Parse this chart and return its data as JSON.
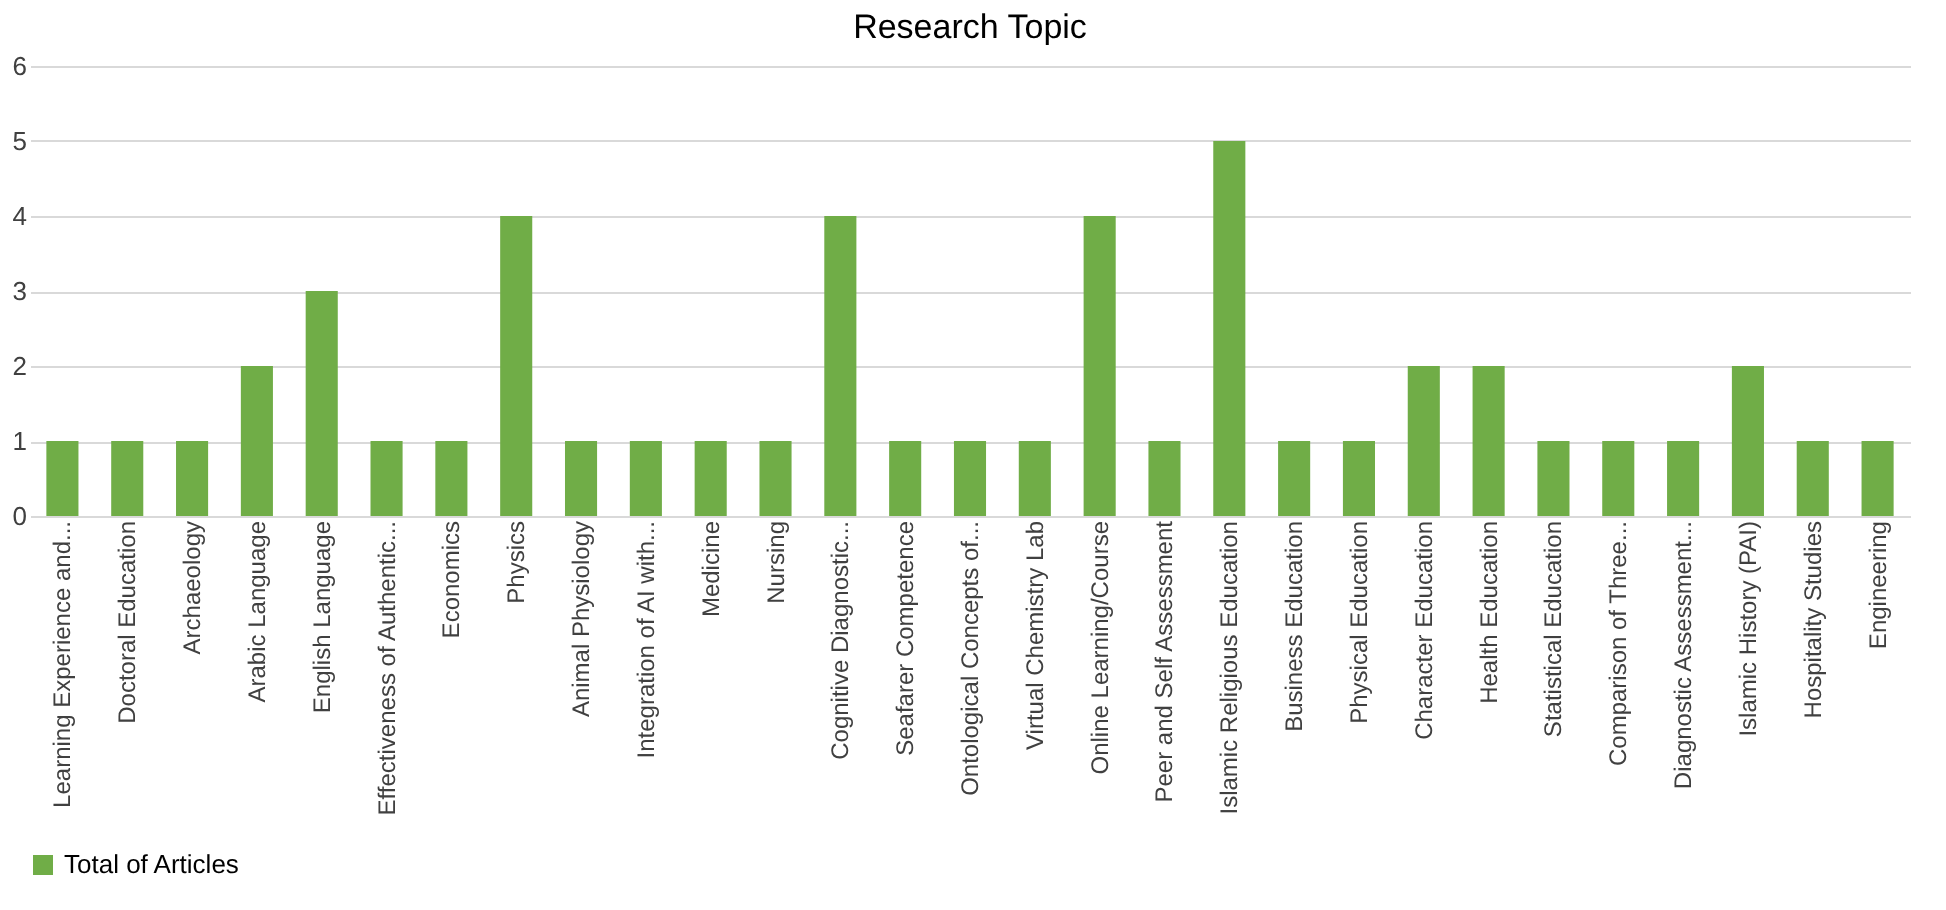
{
  "chart_data": {
    "type": "bar",
    "title": "Research Topic",
    "categories": [
      "Learning Experience and...",
      "Doctoral Education",
      "Archaeology",
      "Arabic Language",
      "English Language",
      "Effectiveness of Authentic...",
      "Economics",
      "Physics",
      "Animal Physiology",
      "Integration of AI with...",
      "Medicine",
      "Nursing",
      "Cognitive Diagnostic...",
      "Seafarer Competence",
      "Ontological Concepts of...",
      "Virtual Chemistry Lab",
      "Online Learning/Course",
      "Peer and Self Assessment",
      "Islamic Religious Education",
      "Business Education",
      "Physical Education",
      "Character Education",
      "Health Education",
      "Statistical Education",
      "Comparison of Three...",
      "Diagnostic Assessment...",
      "Islamic History (PAI)",
      "Hospitality Studies",
      "Engineering"
    ],
    "series": [
      {
        "name": "Total of Articles",
        "color": "#70ad47",
        "values": [
          1,
          1,
          1,
          2,
          3,
          1,
          1,
          4,
          1,
          1,
          1,
          1,
          4,
          1,
          1,
          1,
          4,
          1,
          5,
          1,
          1,
          2,
          2,
          1,
          1,
          1,
          2,
          1,
          1
        ]
      }
    ],
    "ylim": [
      0,
      6
    ],
    "yticks": [
      0,
      1,
      2,
      3,
      4,
      5,
      6
    ],
    "grid": "y",
    "legend": "bottom"
  }
}
